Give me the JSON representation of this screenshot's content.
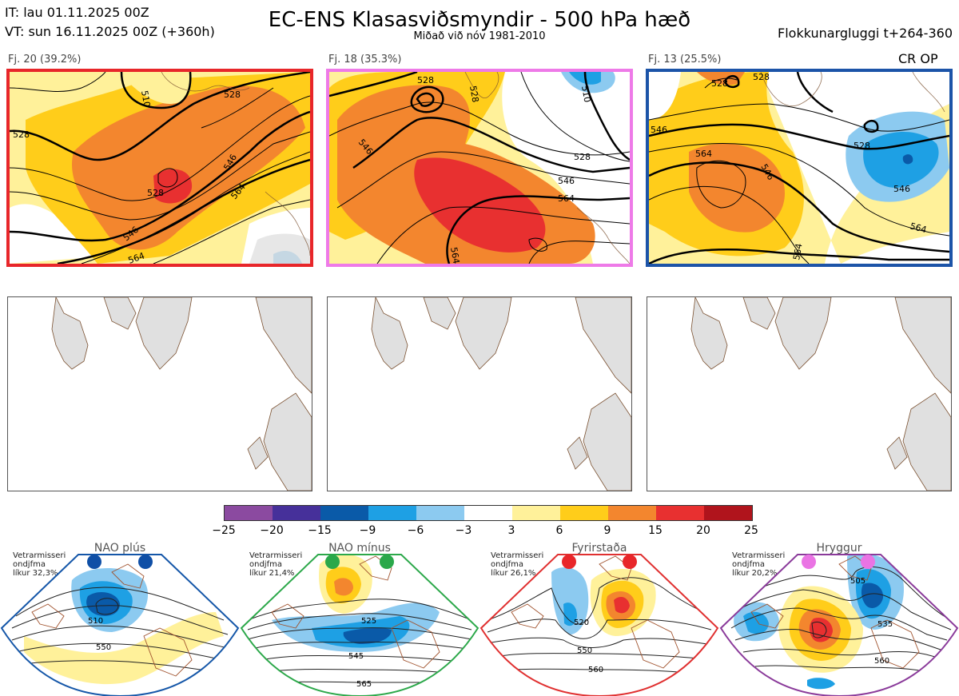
{
  "header": {
    "init_line": "IT: lau 01.11.2025 00Z",
    "valid_line": "VT: sun 16.11.2025 00Z  (+360h)",
    "title": "EC-ENS Klasasviðsmyndir - 500 hPa hæð",
    "subtitle": "Miðað við nóv 1981-2010",
    "window": "Flokkunargluggi t+264-360"
  },
  "clusters": [
    {
      "label": "Fj. 20 (39.2%)",
      "border_color": "#e8262a",
      "contour_labels": [
        "510",
        "528",
        "528",
        "528",
        "546",
        "546",
        "564",
        "564"
      ]
    },
    {
      "label": "Fj. 18 (35.3%)",
      "border_color": "#ee7ae8",
      "contour_labels": [
        "528",
        "528",
        "510",
        "546",
        "528",
        "546",
        "564",
        "564"
      ]
    },
    {
      "label": "Fj. 13 (25.5%)",
      "border_color": "#1c54a8",
      "contour_labels": [
        "528",
        "528",
        "546",
        "564",
        "546",
        "528",
        "546",
        "564",
        "564"
      ],
      "extra": "CR OP"
    }
  ],
  "colorbar": {
    "ticks": [
      "−25",
      "−20",
      "−15",
      "−9",
      "−6",
      "−3",
      "3",
      "6",
      "9",
      "15",
      "20",
      "25"
    ],
    "colors": [
      "#8b4aa0",
      "#46309a",
      "#0a5aa8",
      "#1ea0e4",
      "#8ccaf0",
      "#ffffff",
      "#fff19a",
      "#ffcd1a",
      "#f3862e",
      "#e83030",
      "#b0141c"
    ]
  },
  "regimes": [
    {
      "name": "NAO plús",
      "note_lines": [
        "Vetrarmisseri",
        "ondjfma",
        "líkur 32,3%"
      ],
      "color": "#1456a8",
      "dot_color": "#0f4fa6",
      "contour_labels": [
        "510",
        "550"
      ]
    },
    {
      "name": "NAO mínus",
      "note_lines": [
        "Vetrarmisseri",
        "ondjfma",
        "líkur 21,4%"
      ],
      "color": "#2ca84a",
      "dot_color": "#2aa84a",
      "contour_labels": [
        "525",
        "545",
        "565"
      ]
    },
    {
      "name": "Fyrirstaða",
      "note_lines": [
        "Vetrarmisseri",
        "ondjfma",
        "líkur 26,1%"
      ],
      "color": "#e03030",
      "dot_color": "#e8262a",
      "contour_labels": [
        "520",
        "550",
        "560"
      ]
    },
    {
      "name": "Hryggur",
      "note_lines": [
        "Vetrarmisseri",
        "ondjfma",
        "líkur 20,2%"
      ],
      "color": "#8a3a9a",
      "dot_color": "#ea74e4",
      "contour_labels": [
        "505",
        "535",
        "560"
      ]
    }
  ]
}
